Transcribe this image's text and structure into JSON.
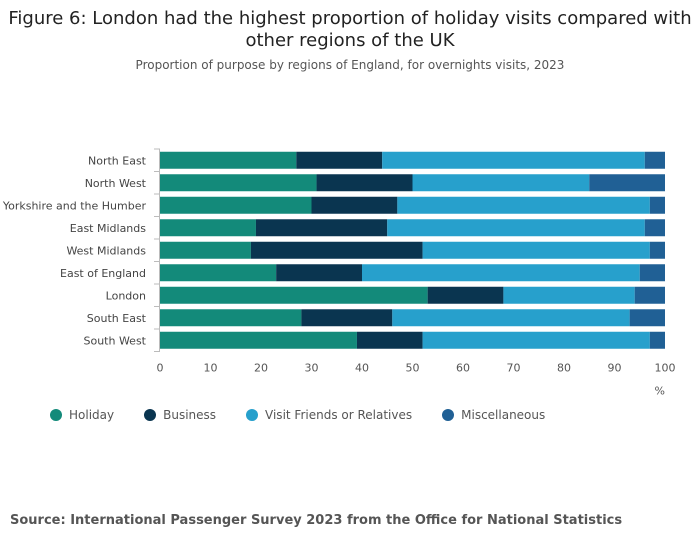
{
  "title": "Figure 6: London had the highest proportion of holiday visits compared with other regions of the UK",
  "subtitle": "Proportion of purpose by regions of England, for overnights visits, 2023",
  "source": "Source: International Passenger Survey 2023 from the Office for National Statistics",
  "chart_data": {
    "type": "bar",
    "orientation": "horizontal",
    "stacked": true,
    "categories": [
      "North East",
      "North West",
      "Yorkshire and the Humber",
      "East Midlands",
      "West Midlands",
      "East of England",
      "London",
      "South East",
      "South West"
    ],
    "series": [
      {
        "name": "Holiday",
        "color": "#138a7a",
        "values": [
          27,
          31,
          30,
          19,
          18,
          23,
          53,
          28,
          39
        ]
      },
      {
        "name": "Business",
        "color": "#0a3550",
        "values": [
          17,
          19,
          17,
          26,
          34,
          17,
          15,
          18,
          13
        ]
      },
      {
        "name": "Visit Friends or Relatives",
        "color": "#27a0cc",
        "values": [
          52,
          35,
          50,
          51,
          45,
          55,
          26,
          47,
          45
        ]
      },
      {
        "name": "Miscellaneous",
        "color": "#206095",
        "values": [
          4,
          15,
          3,
          4,
          3,
          5,
          6,
          7,
          3
        ]
      }
    ],
    "xlim": [
      0,
      100
    ],
    "xticks": [
      0,
      10,
      20,
      30,
      40,
      50,
      60,
      70,
      80,
      90,
      100
    ],
    "xlabel": "%",
    "ylabel": "",
    "legend_position": "bottom-left"
  }
}
